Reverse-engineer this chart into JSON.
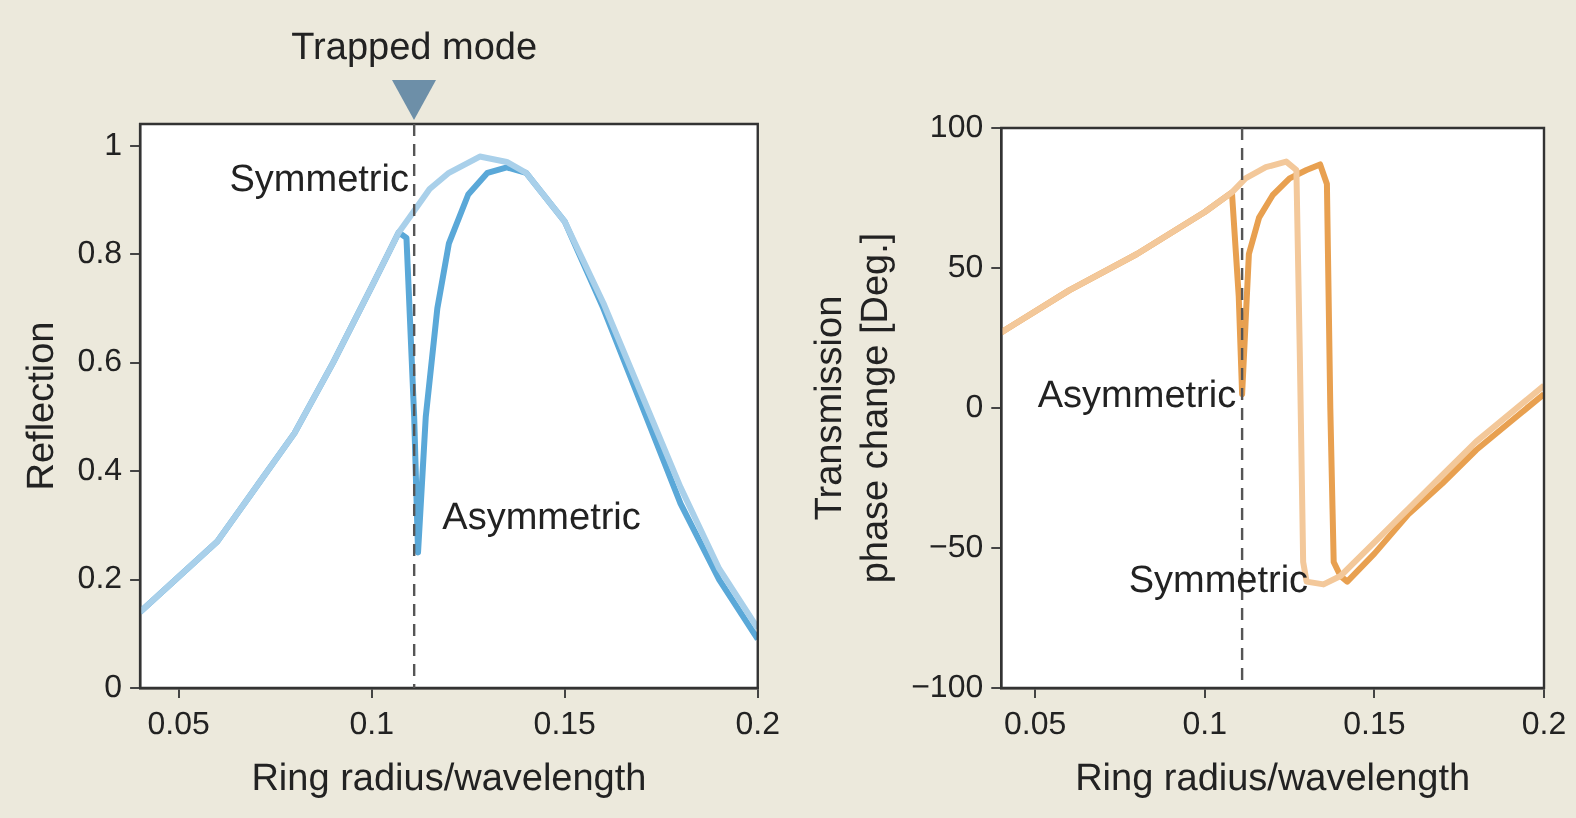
{
  "chart_data": [
    {
      "type": "line",
      "xlabel": "Ring radius/wavelength",
      "ylabel": "Reflection",
      "xlim": [
        0.04,
        0.2
      ],
      "xticks": [
        0.05,
        0.1,
        0.15,
        0.2
      ],
      "ylim": [
        0,
        1.04
      ],
      "yticks": [
        0,
        0.2,
        0.4,
        0.6,
        0.8,
        1
      ],
      "grid": false,
      "legend": false,
      "marker": "none",
      "line_style": "solid",
      "series": [
        {
          "color": "#a9d0ea",
          "x": [
            0.04,
            0.06,
            0.08,
            0.09,
            0.1,
            0.107,
            0.11,
            0.115,
            0.12,
            0.128,
            0.135,
            0.14,
            0.15,
            0.16,
            0.17,
            0.18,
            0.19,
            0.2
          ],
          "values": [
            0.14,
            0.27,
            0.47,
            0.6,
            0.74,
            0.84,
            0.87,
            0.92,
            0.95,
            0.98,
            0.97,
            0.95,
            0.86,
            0.71,
            0.54,
            0.37,
            0.22,
            0.11
          ]
        },
        {
          "color": "#5aa8d8",
          "x": [
            0.04,
            0.06,
            0.08,
            0.09,
            0.1,
            0.107,
            0.109,
            0.111,
            0.112,
            0.114,
            0.117,
            0.12,
            0.125,
            0.13,
            0.135,
            0.14,
            0.15,
            0.16,
            0.17,
            0.18,
            0.19,
            0.2
          ],
          "values": [
            0.14,
            0.27,
            0.47,
            0.6,
            0.74,
            0.84,
            0.83,
            0.5,
            0.25,
            0.5,
            0.7,
            0.82,
            0.91,
            0.95,
            0.96,
            0.95,
            0.86,
            0.7,
            0.52,
            0.34,
            0.2,
            0.09
          ]
        }
      ],
      "ref_lines": [
        {
          "axis": "x",
          "value": 0.111,
          "label": "Trapped mode",
          "color": "#555555",
          "line_style": "dashed"
        }
      ],
      "annotations": [
        "Symmetric",
        "Asymmetric"
      ]
    },
    {
      "type": "line",
      "xlabel": "Ring radius/wavelength",
      "ylabel": "Transmission\nphase change [Deg.]",
      "xlim": [
        0.04,
        0.2
      ],
      "xticks": [
        0.05,
        0.1,
        0.15,
        0.2
      ],
      "ylim": [
        -100,
        100
      ],
      "yticks": [
        -100,
        -50,
        0,
        50,
        100
      ],
      "grid": false,
      "legend": false,
      "marker": "none",
      "line_style": "solid",
      "series": [
        {
          "color": "#f3c89a",
          "x": [
            0.04,
            0.06,
            0.08,
            0.1,
            0.108,
            0.112,
            0.118,
            0.124,
            0.127,
            0.128,
            0.129,
            0.13,
            0.135,
            0.14,
            0.15,
            0.16,
            0.17,
            0.18,
            0.19,
            0.2
          ],
          "values": [
            27,
            42,
            55,
            70,
            77,
            82,
            86,
            88,
            85,
            20,
            -55,
            -62,
            -63,
            -60,
            -48,
            -36,
            -24,
            -12,
            -2,
            8
          ]
        },
        {
          "color": "#e8a050",
          "x": [
            0.04,
            0.06,
            0.08,
            0.1,
            0.108,
            0.11,
            0.111,
            0.112,
            0.113,
            0.116,
            0.12,
            0.125,
            0.13,
            0.134,
            0.136,
            0.137,
            0.138,
            0.14,
            0.142,
            0.15,
            0.16,
            0.17,
            0.18,
            0.19,
            0.2
          ],
          "values": [
            27,
            42,
            55,
            70,
            77,
            40,
            5,
            30,
            55,
            68,
            76,
            82,
            85,
            87,
            80,
            0,
            -55,
            -60,
            -62,
            -52,
            -38,
            -27,
            -15,
            -5,
            5
          ]
        }
      ],
      "ref_lines": [
        {
          "axis": "x",
          "value": 0.111,
          "color": "#555555",
          "line_style": "dashed"
        }
      ],
      "annotations": [
        "Asymmetric",
        "Symmetric"
      ]
    }
  ]
}
